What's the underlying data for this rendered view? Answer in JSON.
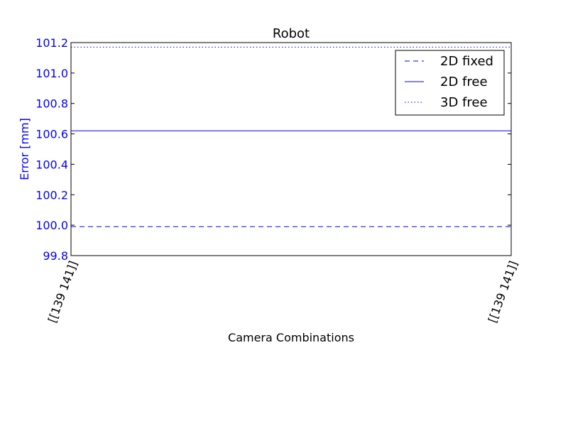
{
  "chart_data": {
    "type": "line",
    "title": "Robot",
    "xlabel": "Camera Combinations",
    "ylabel": "Error [mm]",
    "categories": [
      "[[139 141]]",
      "[[139 141]]"
    ],
    "ylim": [
      99.8,
      101.2
    ],
    "yticks": [
      "99.8",
      "100.0",
      "100.2",
      "100.4",
      "100.6",
      "100.8",
      "101.0",
      "101.2"
    ],
    "grid": false,
    "legend_position": "top-right",
    "series": [
      {
        "name": "2D fixed",
        "style": "dashed",
        "values": [
          99.99,
          99.99
        ]
      },
      {
        "name": "2D free",
        "style": "solid",
        "values": [
          100.62,
          100.62
        ]
      },
      {
        "name": "3D free",
        "style": "dotted",
        "values": [
          101.17,
          101.17
        ]
      }
    ],
    "colors": {
      "series": "#0000ff",
      "ylabel": "#0000ff",
      "ytick": "#0000ff",
      "axis": "#000000"
    }
  }
}
